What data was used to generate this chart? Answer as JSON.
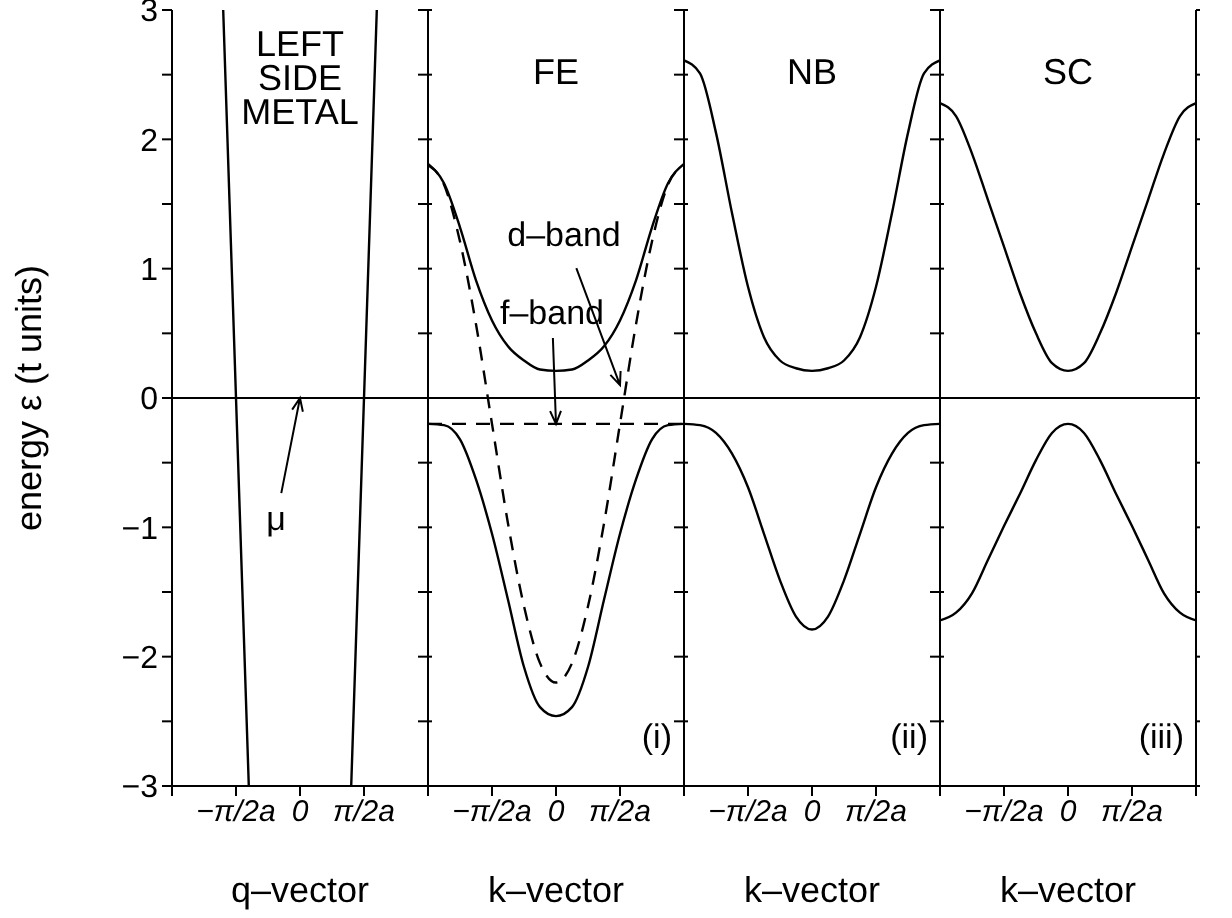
{
  "chart_data": [
    {
      "type": "line",
      "title": "LEFT SIDE METAL",
      "xlabel": "q–vector",
      "ylabel": "energy ε (t units)",
      "categories": [
        null,
        null,
        null,
        null,
        null,
        null,
        null,
        null,
        null,
        null,
        "−π/2a",
        null,
        null,
        null,
        null,
        null,
        null,
        null,
        null,
        null,
        "0",
        null,
        null,
        null,
        null,
        null,
        null,
        null,
        null,
        null,
        "π/2a",
        null,
        null,
        null,
        null,
        null,
        null,
        null,
        null,
        null,
        null
      ],
      "ylim": [
        -3,
        3
      ],
      "yticks": [
        -3,
        {
          "value": -2.5,
          "label": null
        },
        -2,
        {
          "value": -1.5,
          "label": null
        },
        -1,
        {
          "value": -0.5,
          "label": null
        },
        0,
        {
          "value": 0.5,
          "label": null
        },
        1,
        {
          "value": 1.5,
          "label": null
        },
        2,
        {
          "value": 2.5,
          "label": null
        },
        3
      ],
      "marker": "none",
      "line_style": "solid",
      "ref_lines": [
        {
          "axis": "y",
          "value": 0,
          "color": "#000000"
        }
      ],
      "annotations": [
        {
          "text": "μ",
          "x": "0",
          "y": 0
        }
      ],
      "series": [
        {
          "color": "#000000",
          "values": [
            null,
            null,
            null,
            null,
            null,
            null,
            null,
            null,
            3,
            null,
            0,
            null,
            -3,
            null,
            null,
            null,
            null,
            null,
            null,
            null,
            null,
            null,
            null,
            null,
            null,
            null,
            null,
            null,
            null,
            null,
            null,
            null,
            null,
            null,
            null,
            null,
            null,
            null,
            null,
            null,
            null
          ]
        },
        {
          "color": "#000000",
          "values": [
            null,
            null,
            null,
            null,
            null,
            null,
            null,
            null,
            null,
            null,
            null,
            null,
            null,
            null,
            null,
            null,
            null,
            null,
            null,
            null,
            null,
            null,
            null,
            null,
            null,
            null,
            null,
            null,
            -3,
            null,
            0,
            null,
            3,
            null,
            null,
            null,
            null,
            null,
            null,
            null,
            null
          ]
        }
      ]
    },
    {
      "type": "line",
      "title": "FE",
      "xlabel": "k–vector",
      "categories": [
        null,
        null,
        null,
        null,
        "−π/2a",
        null,
        null,
        null,
        "0",
        null,
        null,
        null,
        "π/2a",
        null,
        null,
        null,
        null
      ],
      "ylim": [
        -3,
        3
      ],
      "yticks": [
        -3,
        {
          "value": -2.5,
          "label": null
        },
        -2,
        {
          "value": -1.5,
          "label": null
        },
        -1,
        {
          "value": -0.5,
          "label": null
        },
        0,
        {
          "value": 0.5,
          "label": null
        },
        1,
        {
          "value": 1.5,
          "label": null
        },
        2,
        {
          "value": 2.5,
          "label": null
        },
        3
      ],
      "tick_labels": "x",
      "marker": "none",
      "ref_lines": [
        {
          "axis": "y",
          "value": 0,
          "color": "#000000"
        }
      ],
      "annotations": [
        {
          "text": "d–band",
          "x": "π/2a",
          "y": 0.1
        },
        {
          "text": "f–band",
          "x": "0",
          "y": -0.2
        },
        "(i)"
      ],
      "series": [
        {
          "color": "#000000",
          "line_style": "solid",
          "values": [
            1.81,
            1.66,
            1.32,
            0.91,
            0.6,
            0.4,
            0.29,
            0.22,
            0.21,
            0.22,
            0.29,
            0.4,
            0.6,
            0.91,
            1.32,
            1.66,
            1.81
          ]
        },
        {
          "color": "#000000",
          "line_style": "solid",
          "values": [
            -0.2,
            -0.21,
            -0.32,
            -0.63,
            -1.05,
            -1.56,
            -2.08,
            -2.39,
            -2.46,
            -2.39,
            -2.08,
            -1.56,
            -1.05,
            -0.63,
            -0.32,
            -0.21,
            -0.2
          ]
        },
        {
          "color": "#000000",
          "line_style": "dashed",
          "values": [
            1.8,
            1.65,
            1.21,
            0.57,
            -0.2,
            -0.97,
            -1.61,
            -2.05,
            -2.2,
            -2.05,
            -1.61,
            -0.97,
            -0.2,
            0.57,
            1.21,
            1.65,
            1.8
          ]
        },
        {
          "color": "#000000",
          "line_style": "dashed",
          "values": [
            -0.2,
            -0.2,
            -0.2,
            -0.2,
            -0.2,
            -0.2,
            -0.2,
            -0.2,
            -0.2,
            -0.2,
            -0.2,
            -0.2,
            -0.2,
            -0.2,
            -0.2,
            -0.2,
            -0.2
          ]
        }
      ]
    },
    {
      "type": "line",
      "title": "NB",
      "xlabel": "k–vector",
      "categories": [
        null,
        null,
        null,
        null,
        "−π/2a",
        null,
        null,
        null,
        "0",
        null,
        null,
        null,
        "π/2a",
        null,
        null,
        null,
        null
      ],
      "ylim": [
        -3,
        3
      ],
      "yticks": [
        -3,
        {
          "value": -2.5,
          "label": null
        },
        -2,
        {
          "value": -1.5,
          "label": null
        },
        -1,
        {
          "value": -0.5,
          "label": null
        },
        0,
        {
          "value": 0.5,
          "label": null
        },
        1,
        {
          "value": 1.5,
          "label": null
        },
        2,
        {
          "value": 2.5,
          "label": null
        },
        3
      ],
      "tick_labels": "x",
      "marker": "none",
      "line_style": "solid",
      "ref_lines": [
        {
          "axis": "y",
          "value": 0,
          "color": "#000000"
        }
      ],
      "annotations": [
        "(ii)"
      ],
      "series": [
        {
          "color": "#000000",
          "values": [
            2.61,
            2.51,
            2.05,
            1.43,
            0.86,
            0.47,
            0.29,
            0.23,
            0.21,
            0.23,
            0.29,
            0.47,
            0.86,
            1.43,
            2.05,
            2.51,
            2.61
          ]
        },
        {
          "color": "#000000",
          "values": [
            -0.2,
            -0.21,
            -0.27,
            -0.43,
            -0.69,
            -1.05,
            -1.41,
            -1.69,
            -1.79,
            -1.69,
            -1.41,
            -1.05,
            -0.69,
            -0.43,
            -0.27,
            -0.21,
            -0.2
          ]
        }
      ]
    },
    {
      "type": "line",
      "title": "SC",
      "xlabel": "k–vector",
      "categories": [
        null,
        null,
        null,
        null,
        "−π/2a",
        null,
        null,
        null,
        "0",
        null,
        null,
        null,
        "π/2a",
        null,
        null,
        null,
        null
      ],
      "ylim": [
        -3,
        3
      ],
      "yticks": [
        -3,
        {
          "value": -2.5,
          "label": null
        },
        -2,
        {
          "value": -1.5,
          "label": null
        },
        -1,
        {
          "value": -0.5,
          "label": null
        },
        0,
        {
          "value": 0.5,
          "label": null
        },
        1,
        {
          "value": 1.5,
          "label": null
        },
        2,
        {
          "value": 2.5,
          "label": null
        },
        3
      ],
      "tick_labels": "x",
      "marker": "none",
      "line_style": "solid",
      "ref_lines": [
        {
          "axis": "y",
          "value": 0,
          "color": "#000000"
        }
      ],
      "annotations": [
        "(iii)"
      ],
      "series": [
        {
          "color": "#000000",
          "values": [
            2.28,
            2.18,
            1.89,
            1.53,
            1.17,
            0.81,
            0.5,
            0.27,
            0.21,
            0.27,
            0.5,
            0.81,
            1.17,
            1.53,
            1.89,
            2.18,
            2.28
          ]
        },
        {
          "color": "#000000",
          "values": [
            -1.72,
            -1.66,
            -1.51,
            -1.25,
            -0.99,
            -0.74,
            -0.48,
            -0.27,
            -0.2,
            -0.27,
            -0.48,
            -0.74,
            -0.99,
            -1.25,
            -1.51,
            -1.66,
            -1.72
          ]
        }
      ]
    }
  ]
}
